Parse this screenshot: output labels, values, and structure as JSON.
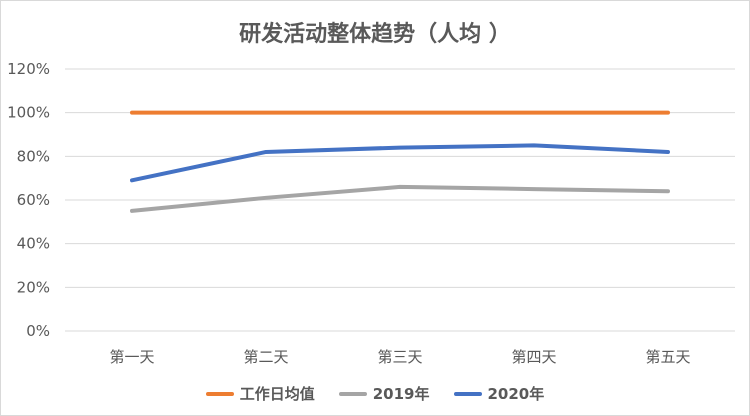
{
  "chart_data": {
    "type": "line",
    "title": "研发活动整体趋势（人均 ）",
    "categories": [
      "第一天",
      "第二天",
      "第三天",
      "第四天",
      "第五天"
    ],
    "ylim": [
      0,
      1.2
    ],
    "yticks": [
      "0%",
      "20%",
      "40%",
      "60%",
      "80%",
      "100%",
      "120%"
    ],
    "grid": true,
    "legend_position": "bottom",
    "series": [
      {
        "name": "工作日均值",
        "color": "#ED7D31",
        "values": [
          1.0,
          1.0,
          1.0,
          1.0,
          1.0
        ]
      },
      {
        "name": "2019年",
        "color": "#A5A5A5",
        "values": [
          0.55,
          0.61,
          0.66,
          0.65,
          0.64
        ]
      },
      {
        "name": "2020年",
        "color": "#4472C4",
        "values": [
          0.69,
          0.82,
          0.84,
          0.85,
          0.82
        ]
      }
    ]
  }
}
